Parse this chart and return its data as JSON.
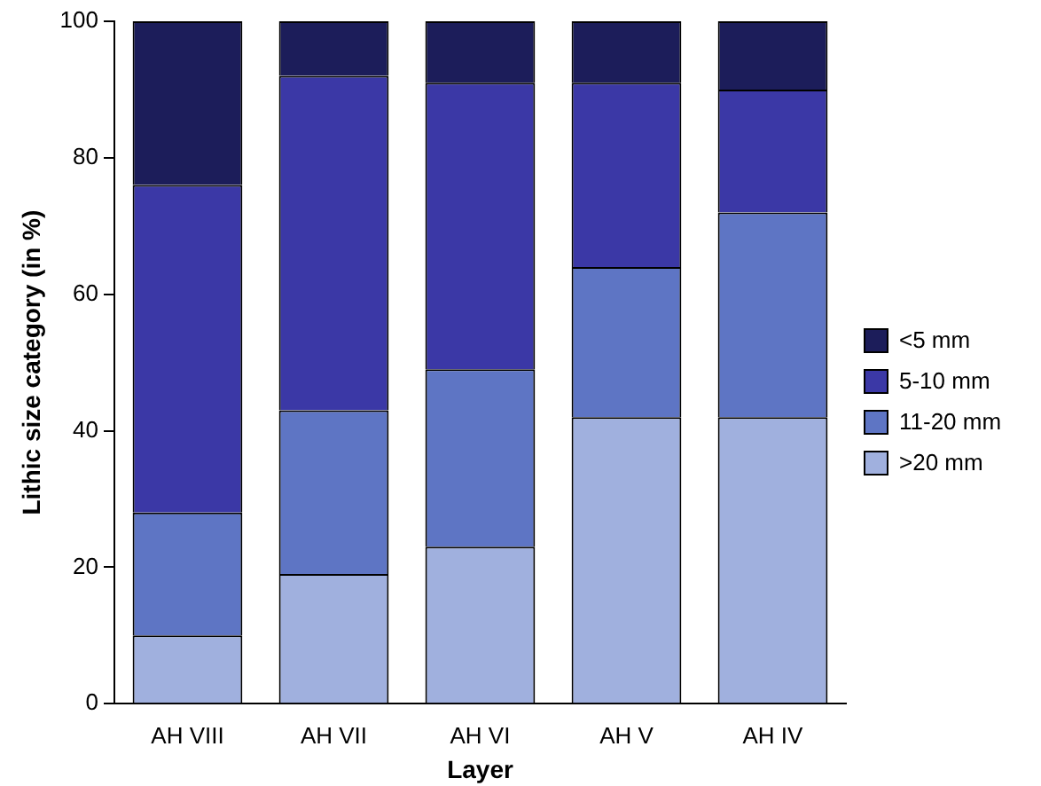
{
  "chart_data": {
    "type": "bar",
    "stacked": true,
    "xlabel": "Layer",
    "ylabel": "Lithic size category (in %)",
    "categories": [
      "AH VIII",
      "AH VII",
      "AH VI",
      "AH V",
      "AH IV"
    ],
    "series": [
      {
        "name": ">20 mm",
        "color": "#a0b0de",
        "values": [
          10,
          19,
          23,
          42,
          42
        ]
      },
      {
        "name": "11-20 mm",
        "color": "#5e75c4",
        "values": [
          18,
          24,
          26,
          22,
          30
        ]
      },
      {
        "name": "5-10 mm",
        "color": "#3b38a6",
        "values": [
          48,
          49,
          42,
          27,
          18
        ]
      },
      {
        "name": "<5 mm",
        "color": "#1c1d5a",
        "values": [
          24,
          8,
          9,
          9,
          10
        ]
      }
    ],
    "ylim": [
      0,
      100
    ],
    "yticks": [
      0,
      20,
      40,
      60,
      80,
      100
    ],
    "grid": false,
    "legend": "right"
  }
}
